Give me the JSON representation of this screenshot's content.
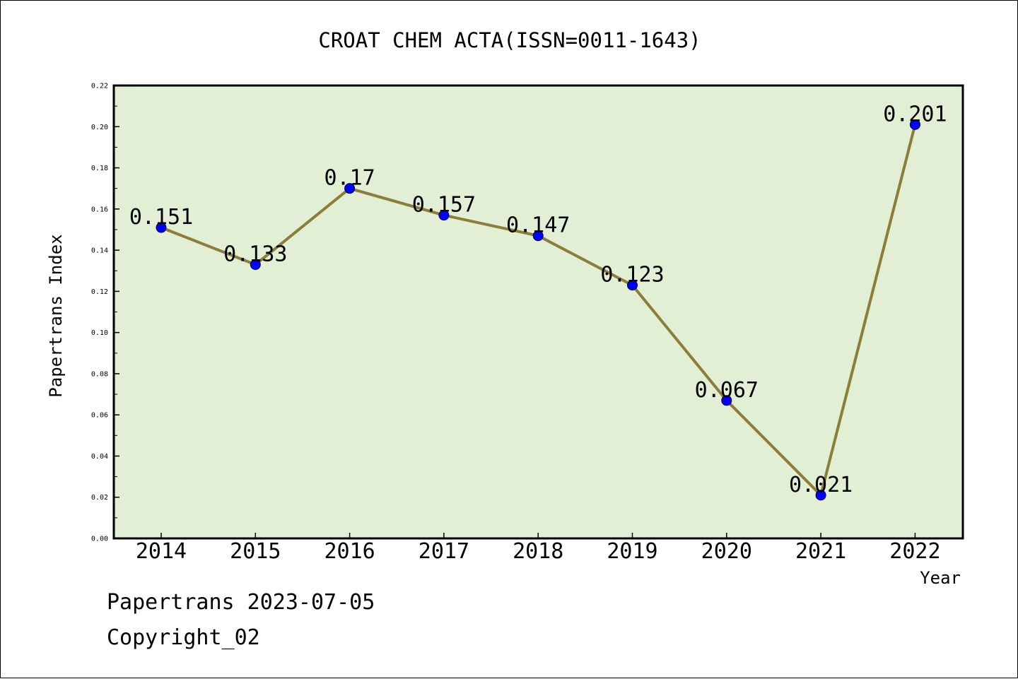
{
  "chart_data": {
    "type": "line",
    "title": "CROAT CHEM ACTA(ISSN=0011-1643)",
    "xlabel": "Year",
    "ylabel": "Papertrans Index",
    "categories": [
      "2014",
      "2015",
      "2016",
      "2017",
      "2018",
      "2019",
      "2020",
      "2021",
      "2022"
    ],
    "series": [
      {
        "values": [
          0.151,
          0.133,
          0.17,
          0.157,
          0.147,
          0.123,
          0.067,
          0.021,
          0.201
        ],
        "data_labels": [
          "0.151",
          "0.133",
          "0.17",
          "0.157",
          "0.147",
          "0.123",
          "0.067",
          "0.021",
          "0.201"
        ]
      }
    ],
    "ylim": [
      0,
      0.22
    ],
    "y_ticks": [
      "0.00",
      "0.02",
      "0.04",
      "0.06",
      "0.08",
      "0.10",
      "0.12",
      "0.14",
      "0.16",
      "0.18",
      "0.20",
      "0.22"
    ],
    "grid": false,
    "legend": "none",
    "colors": {
      "line": "#8b7d3a",
      "marker": "#0000ff",
      "plot_background": "#e2efd4"
    }
  },
  "footer": {
    "line1": "Papertrans 2023-07-05",
    "line2": "Copyright_02"
  }
}
